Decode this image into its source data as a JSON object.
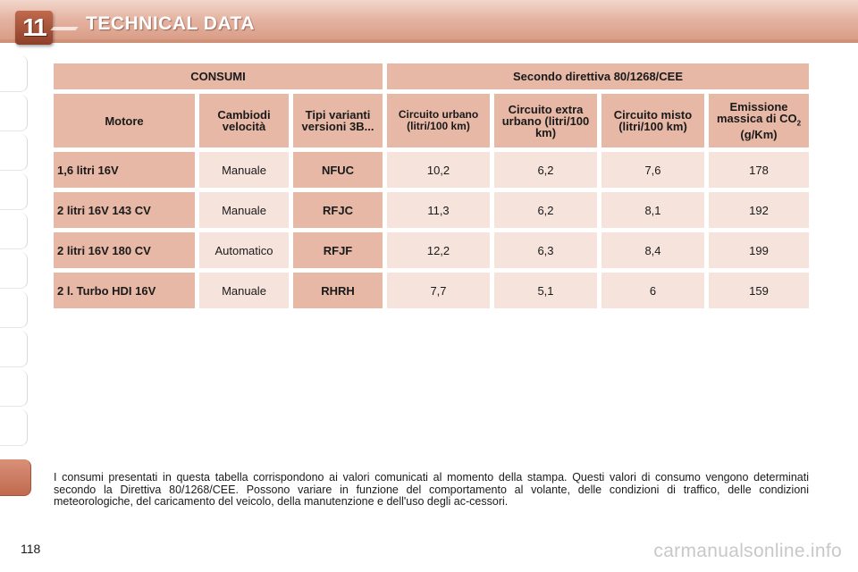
{
  "header": {
    "chapter_number": "11",
    "title": "TECHNICAL DATA"
  },
  "table": {
    "top_headers": [
      "CONSUMI",
      "Secondo direttiva 80/1268/CEE"
    ],
    "column_headers": {
      "motore": "Motore",
      "cambio": "Cambiodi velocità",
      "tipi": "Tipi varianti versioni 3B...",
      "urbano": "Circuito urbano (litri/100 km)",
      "extra": "Circuito extra urbano (litri/100 km)",
      "misto": "Circuito misto (litri/100 km)",
      "emissione_a": "Emissione massica di CO",
      "emissione_sub": "2",
      "emissione_b": " (g/Km)"
    },
    "rows": [
      {
        "motore": "1,6 litri 16V",
        "cambio": "Manuale",
        "tipo": "NFUC",
        "urbano": "10,2",
        "extra": "6,2",
        "misto": "7,6",
        "co2": "178"
      },
      {
        "motore": "2 litri 16V 143 CV",
        "cambio": "Manuale",
        "tipo": "RFJC",
        "urbano": "11,3",
        "extra": "6,2",
        "misto": "8,1",
        "co2": "192"
      },
      {
        "motore": "2 litri 16V 180 CV",
        "cambio": "Automatico",
        "tipo": "RFJF",
        "urbano": "12,2",
        "extra": "6,3",
        "misto": "8,4",
        "co2": "199"
      },
      {
        "motore": "2 l. Turbo HDI 16V",
        "cambio": "Manuale",
        "tipo": "RHRH",
        "urbano": "7,7",
        "extra": "5,1",
        "misto": "6",
        "co2": "159"
      }
    ]
  },
  "note": "I consumi presentati in questa tabella corrispondono ai valori comunicati al momento della stampa. Questi valori di consumo vengono determinati secondo la Direttiva 80/1268/CEE. Possono variare in funzione del comportamento al volante, delle condizioni di traffico, delle condizioni meteorologiche, del caricamento del veicolo, della manutenzione e dell'uso degli ac-cessori.",
  "page_number": "118",
  "watermark": "carmanualsonline.info"
}
